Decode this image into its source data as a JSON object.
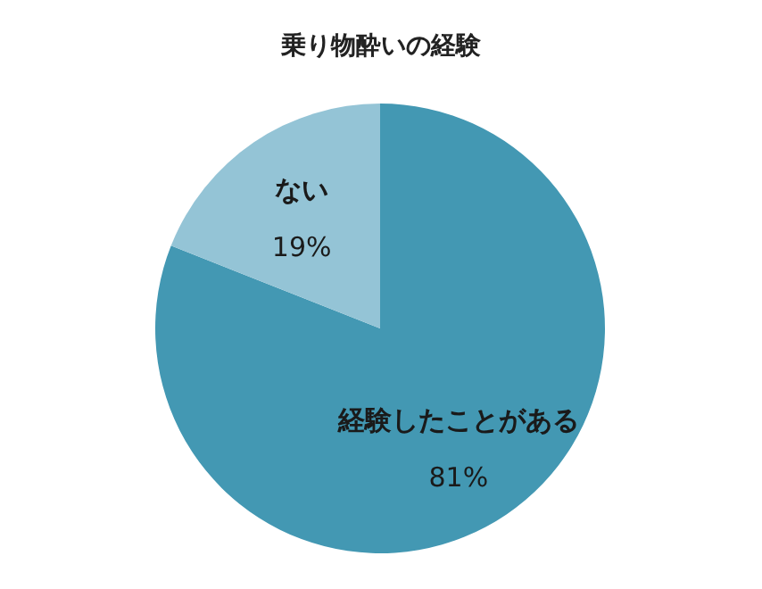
{
  "chart_data": {
    "type": "pie",
    "title": "乗り物酔いの経験",
    "categories": [
      "経験したことがある",
      "ない"
    ],
    "values": [
      81,
      19
    ],
    "colors": [
      "#4398b3",
      "#94c4d6"
    ],
    "value_labels": [
      "81%",
      "19%"
    ]
  }
}
